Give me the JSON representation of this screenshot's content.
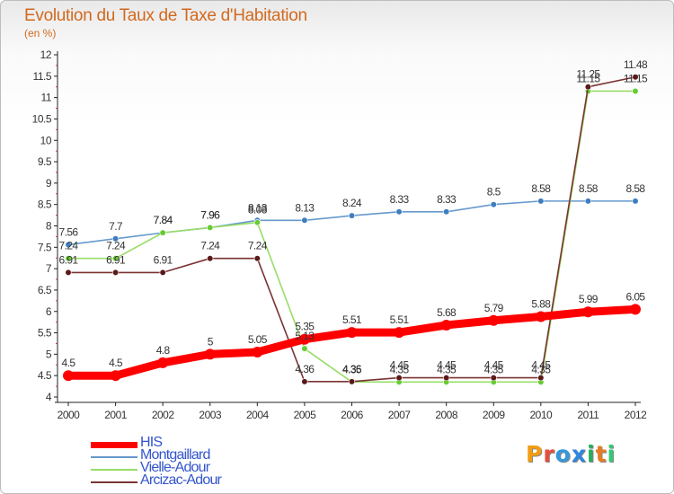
{
  "title": "Evolution du Taux de Taxe d'Habitation",
  "subtitle": "(en %)",
  "brand": {
    "name": "Proxiti",
    "letters": [
      "P",
      "r",
      "o",
      "x",
      "i",
      "t",
      "i"
    ],
    "colors": [
      "#f39c12",
      "#e74c3c",
      "#3498db",
      "#2e86de",
      "#27ae60",
      "#e67e22",
      "#2ecc71"
    ]
  },
  "chart_data": {
    "type": "line",
    "title": "Evolution du Taux de Taxe d'Habitation",
    "ylabel": "(en %)",
    "xlabel": "",
    "x": [
      2000,
      2001,
      2002,
      2003,
      2004,
      2005,
      2006,
      2007,
      2008,
      2009,
      2010,
      2011,
      2012
    ],
    "x_ticks": [
      "2000",
      "2001",
      "2002",
      "2003",
      "2004",
      "2005",
      "2006",
      "2007",
      "2008",
      "2009",
      "2010",
      "2011",
      "2012"
    ],
    "ylim": [
      4,
      12
    ],
    "y_ticks": [
      "4",
      "4.5",
      "5",
      "5.5",
      "6",
      "6.5",
      "7",
      "7.5",
      "8",
      "8.5",
      "9",
      "9.5",
      "10",
      "10.5",
      "11",
      "11.5",
      "12"
    ],
    "grid": false,
    "legend_position": "bottom-left",
    "series": [
      {
        "name": "HIS",
        "color": "#ff0000",
        "marker": "#ff0000",
        "values": [
          4.5,
          4.5,
          4.8,
          5,
          5.05,
          5.35,
          5.51,
          5.51,
          5.68,
          5.79,
          5.88,
          5.99,
          6.05
        ],
        "labels": [
          "4.5",
          "4.5",
          "4.8",
          "5",
          "5.05",
          "5.35",
          "5.51",
          "5.51",
          "5.68",
          "5.79",
          "5.88",
          "5.99",
          "6.05"
        ]
      },
      {
        "name": "Montgaillard",
        "color": "#6699cc",
        "marker": "#3d7ebf",
        "values": [
          7.56,
          7.7,
          7.84,
          7.96,
          8.13,
          8.13,
          8.24,
          8.33,
          8.33,
          8.5,
          8.58,
          8.58,
          8.58
        ],
        "labels": [
          "7.56",
          "7.7",
          "7.84",
          "7.96",
          "8.13",
          "8.13",
          "8.24",
          "8.33",
          "8.33",
          "8.5",
          "8.58",
          "8.58",
          "8.58"
        ]
      },
      {
        "name": "Vielle-Adour",
        "color": "#99dd66",
        "marker": "#66cc33",
        "values": [
          7.24,
          7.24,
          7.84,
          7.96,
          8.08,
          5.13,
          4.35,
          4.35,
          4.35,
          4.35,
          4.35,
          11.15,
          11.15
        ],
        "labels": [
          "7.24",
          "7.24",
          "7.84",
          "7.96",
          "8.08",
          "5.13",
          "4.35",
          "4.35",
          "4.35",
          "4.35",
          "4.35",
          "11.15",
          "11.15"
        ]
      },
      {
        "name": "Arcizac-Adour",
        "color": "#7a3333",
        "marker": "#5a1a1a",
        "values": [
          6.91,
          6.91,
          6.91,
          7.24,
          7.24,
          4.36,
          4.36,
          4.45,
          4.45,
          4.45,
          4.45,
          11.25,
          11.48
        ],
        "labels": [
          "6.91",
          "6.91",
          "6.91",
          "7.24",
          "7.24",
          "4.36",
          "4.36",
          "4.45",
          "4.45",
          "4.45",
          "4.45",
          "11.25",
          "11.48"
        ]
      }
    ]
  }
}
